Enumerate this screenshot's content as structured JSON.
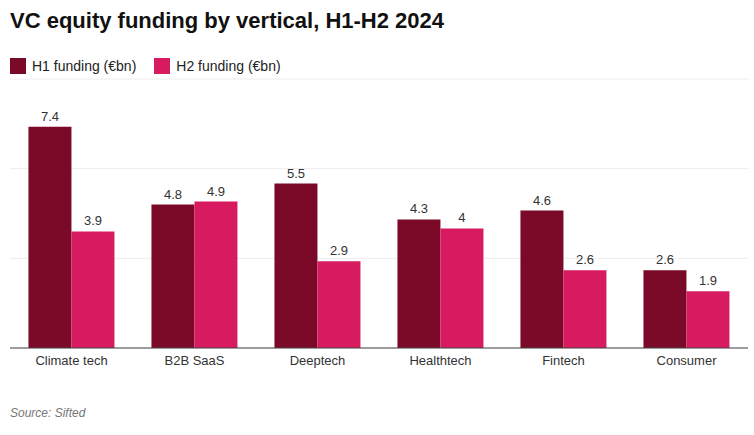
{
  "chart_data": {
    "type": "bar",
    "title": "VC equity funding by vertical, H1-H2 2024",
    "source": "Source: Sifted",
    "categories": [
      "Climate tech",
      "B2B SaaS",
      "Deeptech",
      "Healthtech",
      "Fintech",
      "Consumer"
    ],
    "series": [
      {
        "name": "H1 funding (€bn)",
        "color": "#7b0a28",
        "values": [
          7.4,
          4.8,
          5.5,
          4.3,
          4.6,
          2.6
        ]
      },
      {
        "name": "H2 funding (€bn)",
        "color": "#d81b60",
        "values": [
          3.9,
          4.9,
          2.9,
          4,
          2.6,
          1.9
        ]
      }
    ],
    "ylim": [
      0,
      9
    ],
    "yticks": [
      0,
      3,
      6,
      9
    ],
    "grid": true,
    "legend": "top-left",
    "data_labels": true,
    "tick_labels": "x"
  }
}
